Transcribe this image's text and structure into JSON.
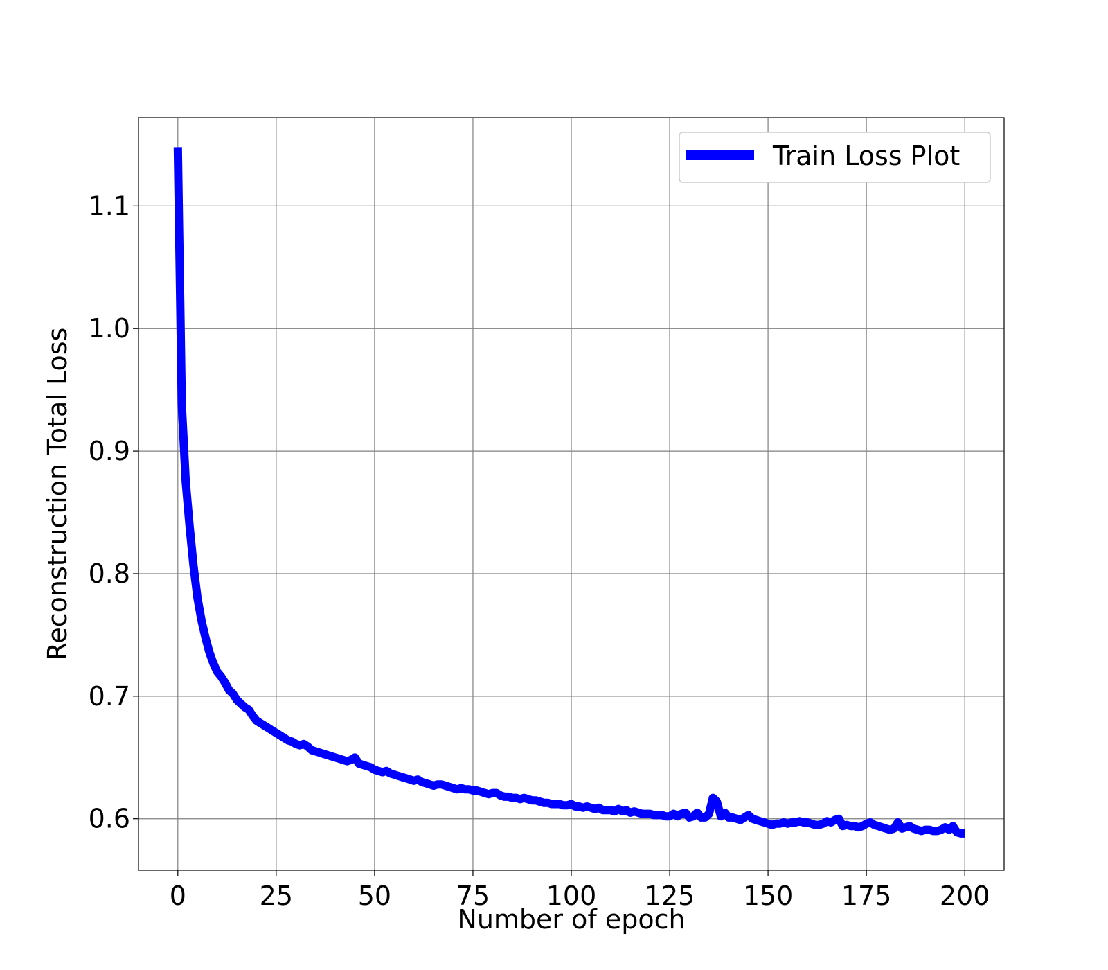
{
  "chart_data": {
    "type": "line",
    "title": "",
    "xlabel": "Number of epoch",
    "ylabel": "Reconstruction Total Loss",
    "xlim": [
      -10,
      210
    ],
    "ylim": [
      0.558,
      1.172
    ],
    "xticks": [
      "0",
      "25",
      "50",
      "75",
      "100",
      "125",
      "150",
      "175",
      "200"
    ],
    "yticks": [
      "0.6",
      "0.7",
      "0.8",
      "0.9",
      "1.0",
      "1.1"
    ],
    "grid": true,
    "legend_position": "top-right",
    "colors": {
      "line": "#0000ff",
      "grid": "#808080",
      "frame": "#000000"
    },
    "series": [
      {
        "name": "Train Loss Plot",
        "x": [
          0,
          1,
          2,
          3,
          4,
          5,
          6,
          7,
          8,
          9,
          10,
          11,
          12,
          13,
          14,
          15,
          16,
          17,
          18,
          19,
          20,
          21,
          22,
          23,
          24,
          25,
          26,
          27,
          28,
          29,
          30,
          31,
          32,
          33,
          34,
          35,
          36,
          37,
          38,
          39,
          40,
          41,
          42,
          43,
          44,
          45,
          46,
          47,
          48,
          49,
          50,
          51,
          52,
          53,
          54,
          55,
          56,
          57,
          58,
          59,
          60,
          61,
          62,
          63,
          64,
          65,
          66,
          67,
          68,
          69,
          70,
          71,
          72,
          73,
          74,
          75,
          76,
          77,
          78,
          79,
          80,
          81,
          82,
          83,
          84,
          85,
          86,
          87,
          88,
          89,
          90,
          91,
          92,
          93,
          94,
          95,
          96,
          97,
          98,
          99,
          100,
          101,
          102,
          103,
          104,
          105,
          106,
          107,
          108,
          109,
          110,
          111,
          112,
          113,
          114,
          115,
          116,
          117,
          118,
          119,
          120,
          121,
          122,
          123,
          124,
          125,
          126,
          127,
          128,
          129,
          130,
          131,
          132,
          133,
          134,
          135,
          136,
          137,
          138,
          139,
          140,
          141,
          142,
          143,
          144,
          145,
          146,
          147,
          148,
          149,
          150,
          151,
          152,
          153,
          154,
          155,
          156,
          157,
          158,
          159,
          160,
          161,
          162,
          163,
          164,
          165,
          166,
          167,
          168,
          169,
          170,
          171,
          172,
          173,
          174,
          175,
          176,
          177,
          178,
          179,
          180,
          181,
          182,
          183,
          184,
          185,
          186,
          187,
          188,
          189,
          190,
          191,
          192,
          193,
          194,
          195,
          196,
          197,
          198,
          199,
          200
        ],
        "values": [
          1.148,
          0.938,
          0.875,
          0.838,
          0.806,
          0.78,
          0.762,
          0.748,
          0.736,
          0.727,
          0.72,
          0.716,
          0.711,
          0.705,
          0.702,
          0.697,
          0.694,
          0.691,
          0.689,
          0.684,
          0.68,
          0.678,
          0.676,
          0.674,
          0.672,
          0.67,
          0.668,
          0.666,
          0.664,
          0.663,
          0.661,
          0.66,
          0.661,
          0.659,
          0.656,
          0.655,
          0.654,
          0.653,
          0.652,
          0.651,
          0.65,
          0.649,
          0.648,
          0.647,
          0.648,
          0.65,
          0.645,
          0.644,
          0.643,
          0.642,
          0.64,
          0.639,
          0.638,
          0.639,
          0.637,
          0.636,
          0.635,
          0.634,
          0.633,
          0.632,
          0.631,
          0.632,
          0.63,
          0.629,
          0.628,
          0.627,
          0.628,
          0.628,
          0.627,
          0.626,
          0.625,
          0.624,
          0.625,
          0.624,
          0.624,
          0.623,
          0.623,
          0.622,
          0.621,
          0.62,
          0.621,
          0.621,
          0.619,
          0.618,
          0.618,
          0.617,
          0.617,
          0.616,
          0.617,
          0.616,
          0.615,
          0.615,
          0.614,
          0.613,
          0.613,
          0.612,
          0.612,
          0.612,
          0.611,
          0.611,
          0.612,
          0.61,
          0.61,
          0.609,
          0.61,
          0.609,
          0.608,
          0.609,
          0.607,
          0.607,
          0.607,
          0.606,
          0.608,
          0.606,
          0.607,
          0.605,
          0.606,
          0.605,
          0.604,
          0.604,
          0.604,
          0.603,
          0.603,
          0.603,
          0.602,
          0.602,
          0.604,
          0.602,
          0.604,
          0.605,
          0.601,
          0.602,
          0.605,
          0.601,
          0.601,
          0.604,
          0.617,
          0.614,
          0.602,
          0.605,
          0.601,
          0.601,
          0.6,
          0.599,
          0.601,
          0.603,
          0.6,
          0.599,
          0.598,
          0.597,
          0.596,
          0.595,
          0.596,
          0.596,
          0.597,
          0.596,
          0.597,
          0.597,
          0.598,
          0.597,
          0.597,
          0.596,
          0.595,
          0.595,
          0.596,
          0.598,
          0.597,
          0.599,
          0.6,
          0.594,
          0.595,
          0.594,
          0.594,
          0.593,
          0.594,
          0.596,
          0.597,
          0.595,
          0.594,
          0.593,
          0.592,
          0.591,
          0.592,
          0.597,
          0.592,
          0.593,
          0.594,
          0.592,
          0.591,
          0.59,
          0.591,
          0.591,
          0.59,
          0.59,
          0.591,
          0.593,
          0.591,
          0.594,
          0.589,
          0.588,
          0.588
        ]
      }
    ]
  }
}
